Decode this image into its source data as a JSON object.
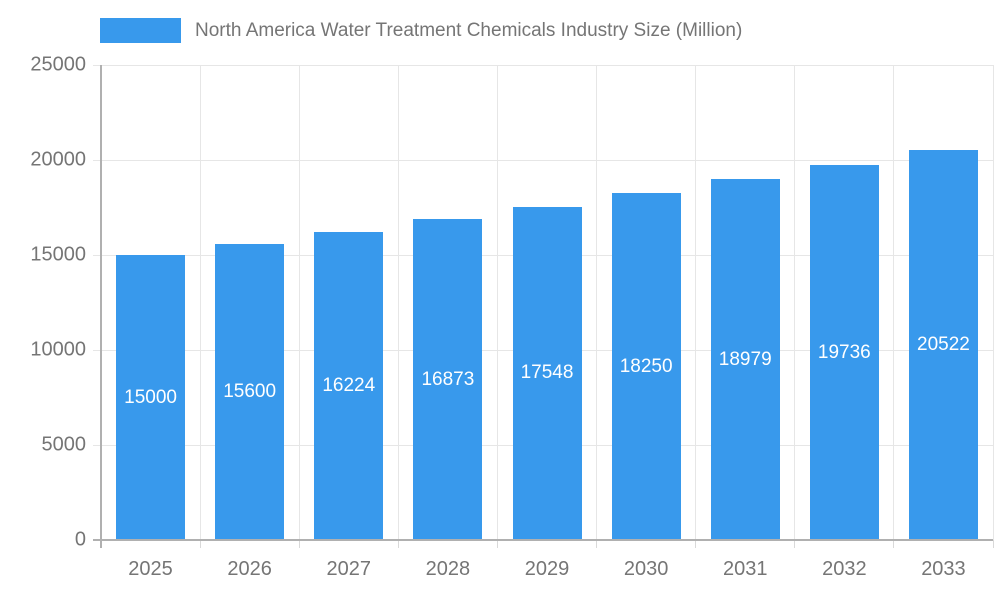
{
  "legend": {
    "label": "North America Water Treatment Chemicals Industry Size (Million)",
    "swatch_color": "#3899EC"
  },
  "chart_data": {
    "type": "bar",
    "title": "North America Water Treatment Chemicals Industry Size (Million)",
    "categories": [
      "2025",
      "2026",
      "2027",
      "2028",
      "2029",
      "2030",
      "2031",
      "2032",
      "2033"
    ],
    "values": [
      15000,
      15600,
      16224,
      16873,
      17548,
      18250,
      18979,
      19736,
      20522
    ],
    "xlabel": "",
    "ylabel": "",
    "ylim": [
      0,
      25000
    ],
    "yticks": [
      0,
      5000,
      10000,
      15000,
      20000,
      25000
    ],
    "grid": true,
    "legend_position": "top-left",
    "bar_label_position": "inside-middle",
    "colors": {
      "bar": "#3899EC",
      "axis_text": "#757575",
      "grid_line": "#e6e6e6",
      "axis_line": "#b0b0b0",
      "bar_label": "#ffffff",
      "background": "#ffffff"
    }
  }
}
